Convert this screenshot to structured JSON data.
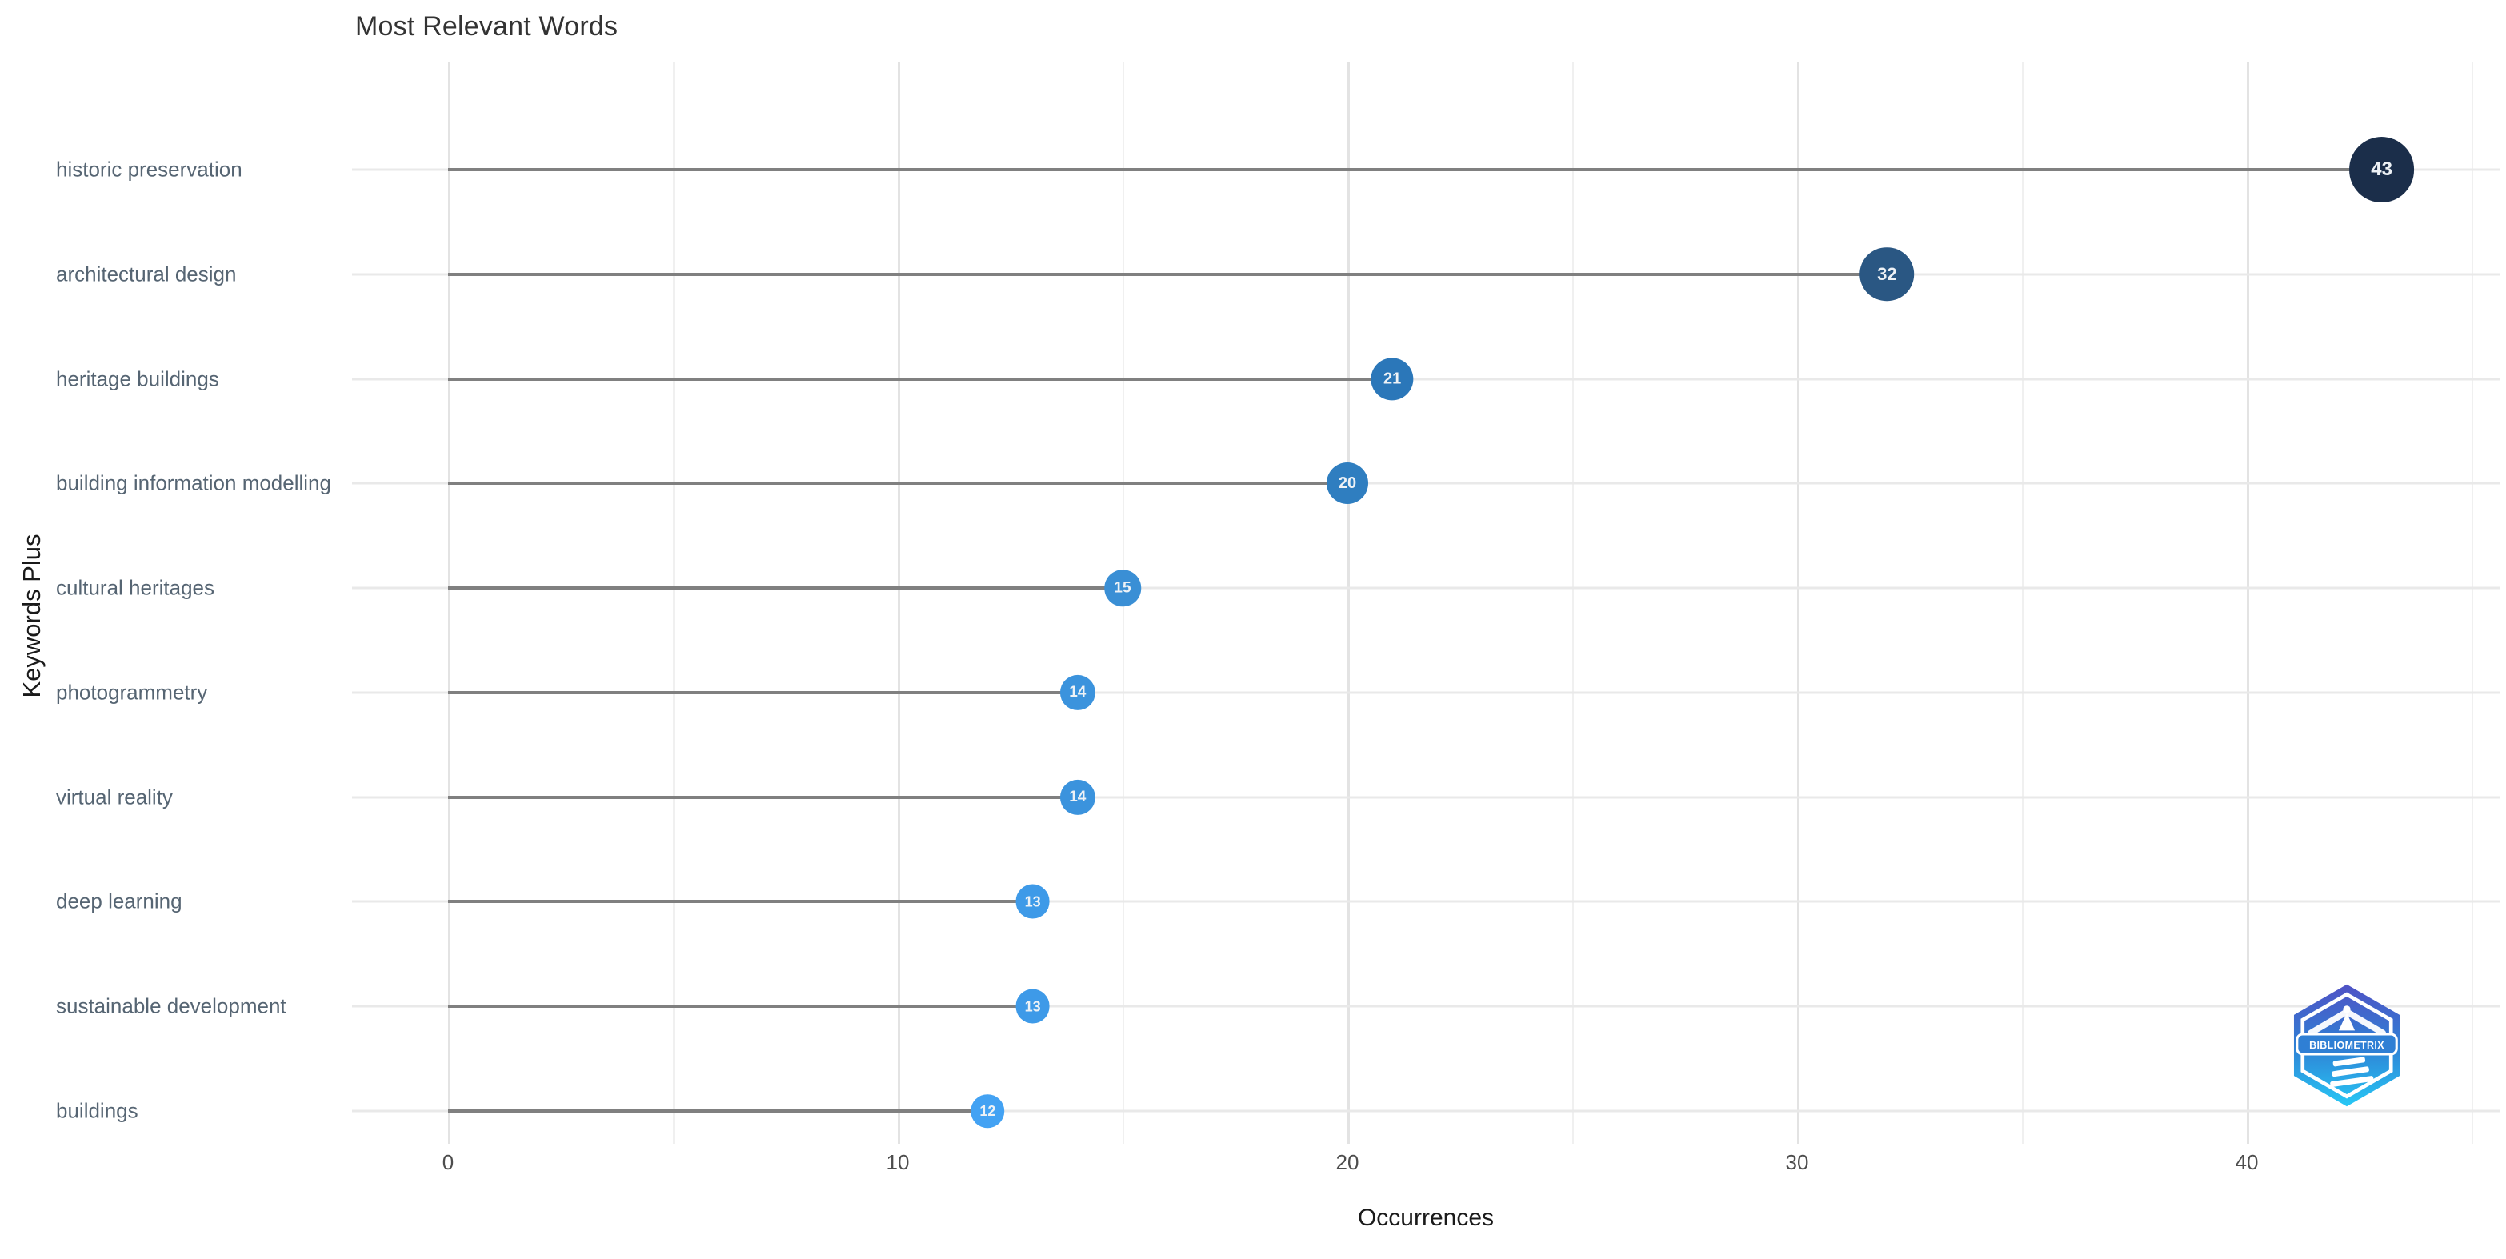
{
  "header": {
    "title": "Most Relevant Words"
  },
  "chart_data": {
    "type": "lollipop",
    "orientation": "horizontal",
    "title": "Most Relevant Words",
    "xlabel": "Occurrences",
    "ylabel": "Keywords Plus",
    "xlim": [
      0,
      45
    ],
    "x_major_ticks": [
      0,
      10,
      20,
      30,
      40
    ],
    "x_minor_step": 5,
    "grid": "vertical major+minor gridlines, light horizontal gridline per category",
    "legend": "none",
    "categories": [
      "historic preservation",
      "architectural design",
      "heritage buildings",
      "building information modelling",
      "cultural heritages",
      "photogrammetry",
      "virtual reality",
      "deep learning",
      "sustainable development",
      "buildings"
    ],
    "values": [
      43,
      32,
      21,
      20,
      15,
      14,
      14,
      13,
      13,
      12
    ],
    "point_colors": [
      "#1b2e4a",
      "#2a5783",
      "#2b77b9",
      "#2f7ec0",
      "#3a8fd5",
      "#3b93dd",
      "#3b93dd",
      "#3e9ae8",
      "#3e9ae8",
      "#43a2f3"
    ],
    "stem_color": "#808080",
    "value_label_color": "#eef2f6"
  },
  "colors": {
    "background": "#ffffff",
    "major_grid": "#e3e3e3",
    "minor_grid": "#f0f0f0",
    "row_grid": "#e9e9e9",
    "axis_text": "#4d4d4d",
    "category_text": "#566573",
    "title_text": "#333333",
    "axis_title_text": "#1a1a1a"
  },
  "logo": {
    "banner_text": "BIBLIOMETRIX",
    "gradient_top": "#5052c5",
    "gradient_mid": "#2f7fd4",
    "gradient_bottom": "#27c8f5"
  }
}
